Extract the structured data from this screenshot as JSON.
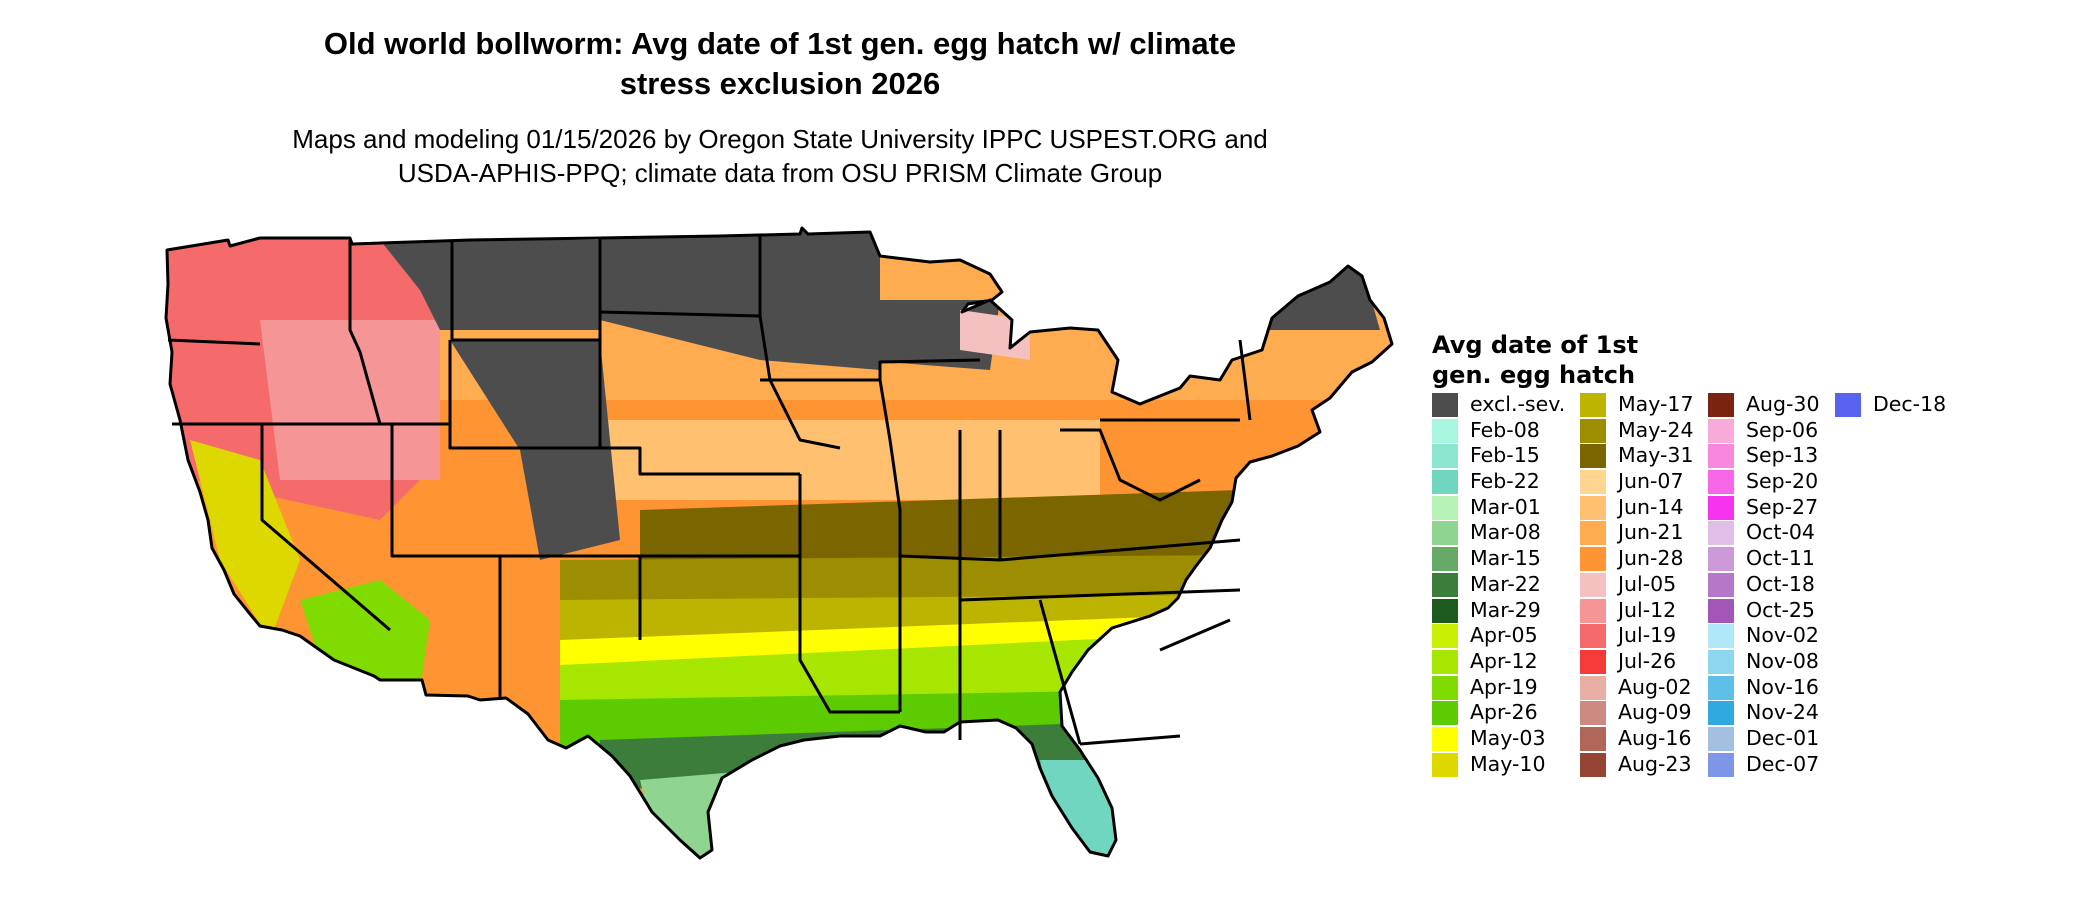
{
  "title_lines": [
    "Old world bollworm: Avg date of 1st gen. egg hatch w/ climate",
    "stress exclusion 2026"
  ],
  "subtitle_lines": [
    "Maps and modeling 01/15/2026 by Oregon State University IPPC USPEST.ORG and",
    "USDA-APHIS-PPQ; climate data from OSU PRISM Climate Group"
  ],
  "legend": {
    "title_lines": [
      "Avg date of 1st",
      "gen. egg hatch"
    ],
    "columns": [
      [
        {
          "label": "excl.-sev.",
          "color": "#4d4d4d"
        },
        {
          "label": "Feb-08",
          "color": "#a8f5e0"
        },
        {
          "label": "Feb-15",
          "color": "#8ce6cf"
        },
        {
          "label": "Feb-22",
          "color": "#70d6bf"
        },
        {
          "label": "Mar-01",
          "color": "#b7f2b7"
        },
        {
          "label": "Mar-08",
          "color": "#8fd48f"
        },
        {
          "label": "Mar-15",
          "color": "#66a966"
        },
        {
          "label": "Mar-22",
          "color": "#3c7d3c"
        },
        {
          "label": "Mar-29",
          "color": "#1d5a1d"
        },
        {
          "label": "Apr-05",
          "color": "#c8f000"
        },
        {
          "label": "Apr-12",
          "color": "#a6e600"
        },
        {
          "label": "Apr-19",
          "color": "#80dc00"
        },
        {
          "label": "Apr-26",
          "color": "#5ccc00"
        },
        {
          "label": "May-03",
          "color": "#ffff00"
        },
        {
          "label": "May-10",
          "color": "#dcd800"
        }
      ],
      [
        {
          "label": "May-17",
          "color": "#bcb400"
        },
        {
          "label": "May-24",
          "color": "#9c8e00"
        },
        {
          "label": "May-31",
          "color": "#7a6500"
        },
        {
          "label": "Jun-07",
          "color": "#ffd58f"
        },
        {
          "label": "Jun-14",
          "color": "#ffc070"
        },
        {
          "label": "Jun-21",
          "color": "#ffab50"
        },
        {
          "label": "Jun-28",
          "color": "#ff9433"
        },
        {
          "label": "Jul-05",
          "color": "#f5c0c0"
        },
        {
          "label": "Jul-12",
          "color": "#f59595"
        },
        {
          "label": "Jul-19",
          "color": "#f56a6a"
        },
        {
          "label": "Jul-26",
          "color": "#f53a3a"
        },
        {
          "label": "Aug-02",
          "color": "#e8b0a5"
        },
        {
          "label": "Aug-09",
          "color": "#cc8a80"
        },
        {
          "label": "Aug-16",
          "color": "#b06658"
        },
        {
          "label": "Aug-23",
          "color": "#944433"
        }
      ],
      [
        {
          "label": "Aug-30",
          "color": "#7a2410"
        },
        {
          "label": "Sep-06",
          "color": "#f8aad8"
        },
        {
          "label": "Sep-13",
          "color": "#f788de"
        },
        {
          "label": "Sep-20",
          "color": "#f766e6"
        },
        {
          "label": "Sep-27",
          "color": "#f733f0"
        },
        {
          "label": "Oct-04",
          "color": "#e0bee8"
        },
        {
          "label": "Oct-11",
          "color": "#cc9ad8"
        },
        {
          "label": "Oct-18",
          "color": "#b777c8"
        },
        {
          "label": "Oct-25",
          "color": "#a355b8"
        },
        {
          "label": "Nov-02",
          "color": "#b0e8f8"
        },
        {
          "label": "Nov-08",
          "color": "#8cd6f0"
        },
        {
          "label": "Nov-16",
          "color": "#5ec0e8"
        },
        {
          "label": "Nov-24",
          "color": "#30a8e0"
        },
        {
          "label": "Dec-01",
          "color": "#a4c0e0"
        },
        {
          "label": "Dec-07",
          "color": "#7e96e8"
        }
      ],
      [
        {
          "label": "Dec-18",
          "color": "#5864f0"
        }
      ]
    ]
  }
}
